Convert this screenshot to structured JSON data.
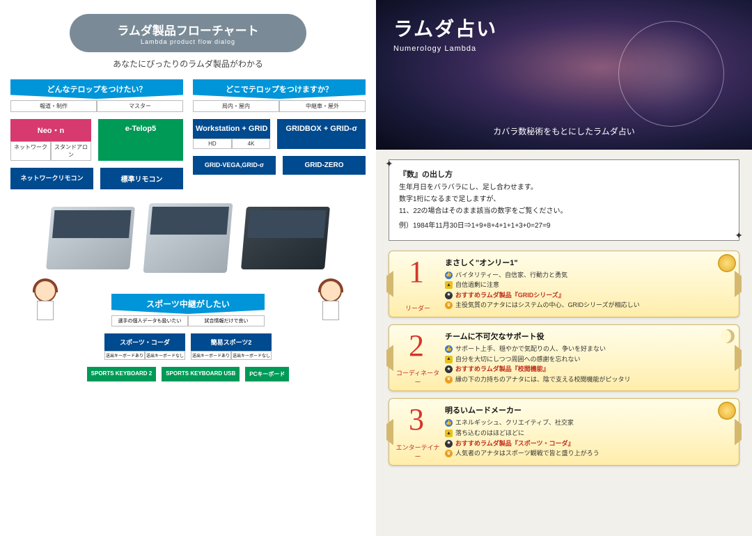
{
  "left": {
    "title_jp": "ラムダ製品フローチャート",
    "title_en": "Lambda product flow dialog",
    "subtitle": "あなたにぴったりのラムダ製品がわかる",
    "flow1": {
      "q1": "どんなテロップをつけたい？",
      "q1_opts": [
        "報道・制作",
        "マスター"
      ],
      "q2": "どこでテロップをつけますか？",
      "q2_opts": [
        "局内・屋内",
        "中継車・屋外"
      ],
      "p_neon": "Neo・n",
      "neon_opts": [
        "ネットワーク",
        "スタンドアロン"
      ],
      "p_etelop": "e-Telop5",
      "p_ws": "Workstation + GRID",
      "ws_opts": [
        "HD",
        "4K"
      ],
      "p_gbox": "GRIDBOX + GRID-σ",
      "l_net": "ネットワークリモコン",
      "l_std": "標準リモコン",
      "l_vega": "GRID-VEGA,GRID-σ",
      "l_zero": "GRID-ZERO"
    },
    "sport": {
      "header": "スポーツ中継がしたい",
      "opts": [
        "選手の個人データも扱いたい",
        "試合情報だけで良い"
      ],
      "p1": "スポーツ・コーダ",
      "p2": "簡易スポーツ2",
      "sub_opts": [
        "送出キーボードあり",
        "送出キーボードなし"
      ],
      "l1": "SPORTS KEYBOARD 2",
      "l2": "SPORTS KEYBOARD USB",
      "l3": "PCキーボード"
    },
    "colors": {
      "header": "#0095d9",
      "neon": "#d63a6e",
      "etelop": "#009a57",
      "ws": "#004a8f",
      "gbox": "#004a8f",
      "leaf": "#004a8f",
      "sport_leaf": "#009a57"
    }
  },
  "right": {
    "title_jp": "ラムダ占い",
    "title_en": "Numerology Lambda",
    "subtitle": "カバラ数秘術をもとにしたラムダ占い",
    "instruction": {
      "title": "『数』の出し方",
      "l1": "生年月日をバラバラにし、足し合わせます。",
      "l2": "数字1桁になるまで足しますが、",
      "l3": "11、22の場合はそのまま該当の数字をご覧ください。",
      "ex": "例）1984年11月30日⇒1+9+8+4+1+1+3+0=27=9"
    },
    "cards": [
      {
        "num": "1",
        "role": "リーダー",
        "title": "まさしく\"オンリー1\"",
        "thumb": "バイタリティー、自信家、行動力と勇気",
        "warn": "自信過剰に注意",
        "rec": "おすすめラムダ製品『GRIDシリーズ』",
        "crown": "主役気質のアナタにはシステムの中心、GRIDシリーズが相応しい",
        "badge": "sun"
      },
      {
        "num": "2",
        "role": "コーディネーター",
        "title": "チームに不可欠なサポート役",
        "thumb": "サポート上手、穏やかで気配りの人、争いを好まない",
        "warn": "自分を大切にしつつ周囲への感謝を忘れない",
        "rec": "おすすめラムダ製品『校閲機能』",
        "crown": "縁の下の力持ちのアナタには、陰で支える校閲機能がピッタリ",
        "badge": "moon"
      },
      {
        "num": "3",
        "role": "エンターテイナー",
        "title": "明るいムードメーカー",
        "thumb": "エネルギッシュ、クリエイティブ、社交家",
        "warn": "落ち込むのはほどほどに",
        "rec": "おすすめラムダ製品『スポーツ・コーダ』",
        "crown": "人気者のアナタはスポーツ観戦で皆と盛り上がろう",
        "badge": "sun"
      }
    ]
  }
}
